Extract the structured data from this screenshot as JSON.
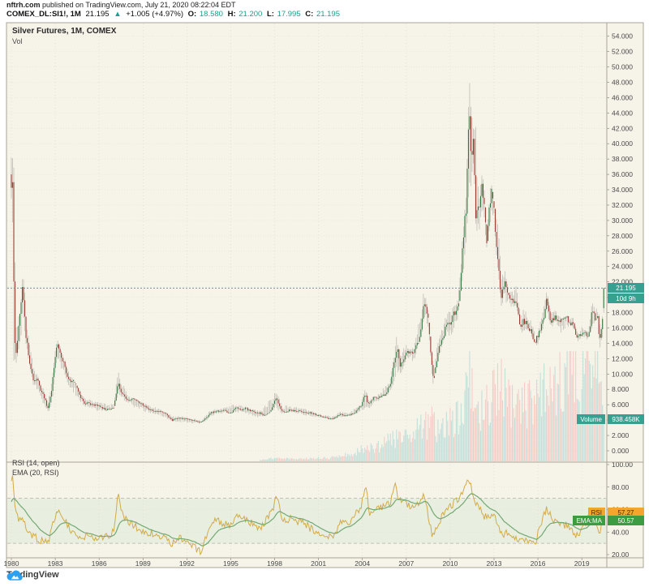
{
  "header": {
    "site": "nftrh.com",
    "published": " published on TradingView.com, July 21, 2020 08:22:04 EDT",
    "symbol": "COMEX_DL:SI1!, 1M",
    "last": "21.195",
    "arrow": "▲",
    "change": "+1.005 (+4.97%)",
    "o_label": "O:",
    "o_value": "18.580",
    "h_label": "H:",
    "h_value": "21.200",
    "l_label": "L:",
    "l_value": "17.995",
    "c_label": "C:",
    "c_value": "21.195"
  },
  "legend": {
    "title": "Silver Futures, 1M, COMEX",
    "vol": "Vol"
  },
  "rsi_legend": {
    "line1": "RSI (14, open)",
    "line2": "EMA (20, RSI)"
  },
  "badges": {
    "price": "21.195",
    "countdown": "10d 9h",
    "volume_label": "Volume",
    "volume_value": "938.458K",
    "rsi_label": "RSI",
    "rsi_value": "57.27",
    "ema_label": "EMA:MA",
    "ema_value": "50.57"
  },
  "footer": {
    "logo_text": "TradingView"
  },
  "colors": {
    "chart_bg": "#f6f3e9",
    "up": "#33763f",
    "down": "#9c3b34",
    "wick": "#b9b6ad",
    "vol_up": "#c3dfda",
    "vol_down": "#f5cdc7",
    "grid": "#e8e4d5",
    "vgrid": "#ddd8c8",
    "border": "#a9a498",
    "price_line": "#2fa095",
    "badge_teal": "#38a091",
    "badge_orange": "#f3a62c",
    "badge_orange_text": "#3f2c00",
    "badge_green": "#3d9b41",
    "rsi_line": "#d2ab48",
    "ema_line": "#74a873",
    "rsi_band": "#e8efe0",
    "rsi_dash": "#b2afa4",
    "axis_text": "#4a4a4a",
    "tv_blue": "#2da1f0"
  },
  "chart_data": {
    "type": "candlestick",
    "title": "Silver Futures, 1M, COMEX",
    "interval": "1M",
    "exchange": "COMEX",
    "x_ticks": [
      "1980",
      "1983",
      "1986",
      "1989",
      "1992",
      "1995",
      "1998",
      "2001",
      "2004",
      "2007",
      "2010",
      "2013",
      "2016",
      "2019"
    ],
    "price_axis_ticks": [
      "54.000",
      "52.000",
      "50.000",
      "48.000",
      "46.000",
      "44.000",
      "42.000",
      "40.000",
      "38.000",
      "36.000",
      "34.000",
      "32.000",
      "30.000",
      "28.000",
      "26.000",
      "24.000",
      "22.000",
      "20.000",
      "18.000",
      "16.000",
      "14.000",
      "12.000",
      "10.000",
      "8.000",
      "6.000",
      "4.000",
      "2.000",
      "0.000"
    ],
    "rsi_axis_ticks": [
      "100.00",
      "80.00",
      "60.00",
      "40.00",
      "20.00"
    ],
    "x_range": [
      1980.0,
      2020.58
    ],
    "price_range_visible": [
      -1.5,
      55.8
    ],
    "last_price": 21.195,
    "last_bar": {
      "open": 18.58,
      "high": 21.2,
      "low": 17.995,
      "close": 21.195
    },
    "last_volume_K": 938.458,
    "rsi_levels": [
      70,
      30
    ],
    "rsi_last": 57.27,
    "ema_last": 50.57,
    "close_keyframes": [
      [
        1980.0,
        34
      ],
      [
        1980.08,
        36
      ],
      [
        1980.17,
        21
      ],
      [
        1980.25,
        14
      ],
      [
        1980.33,
        13
      ],
      [
        1980.5,
        16
      ],
      [
        1980.75,
        21
      ],
      [
        1980.9,
        18
      ],
      [
        1981.0,
        15
      ],
      [
        1981.25,
        11.5
      ],
      [
        1981.5,
        9
      ],
      [
        1981.75,
        9.5
      ],
      [
        1982.0,
        8
      ],
      [
        1982.25,
        7
      ],
      [
        1982.5,
        5.5
      ],
      [
        1982.75,
        8
      ],
      [
        1983.0,
        12.5
      ],
      [
        1983.2,
        14
      ],
      [
        1983.4,
        12
      ],
      [
        1983.6,
        11.5
      ],
      [
        1983.8,
        9.5
      ],
      [
        1984.0,
        9
      ],
      [
        1984.3,
        9.5
      ],
      [
        1984.6,
        7.5
      ],
      [
        1985.0,
        6.2
      ],
      [
        1985.5,
        6.1
      ],
      [
        1986.0,
        5.8
      ],
      [
        1986.5,
        5.3
      ],
      [
        1987.0,
        5.6
      ],
      [
        1987.3,
        9
      ],
      [
        1987.5,
        7.6
      ],
      [
        1987.8,
        6.8
      ],
      [
        1988.0,
        6.5
      ],
      [
        1988.5,
        6.8
      ],
      [
        1989.0,
        5.9
      ],
      [
        1989.5,
        5.3
      ],
      [
        1990.0,
        5.2
      ],
      [
        1990.5,
        4.9
      ],
      [
        1991.0,
        4.0
      ],
      [
        1991.5,
        4.3
      ],
      [
        1992.0,
        4.1
      ],
      [
        1992.5,
        3.9
      ],
      [
        1993.0,
        3.7
      ],
      [
        1993.6,
        4.9
      ],
      [
        1994.0,
        5.1
      ],
      [
        1994.5,
        5.3
      ],
      [
        1995.0,
        4.7
      ],
      [
        1995.3,
        5.6
      ],
      [
        1995.7,
        5.3
      ],
      [
        1996.0,
        5.5
      ],
      [
        1996.5,
        5.1
      ],
      [
        1997.0,
        4.9
      ],
      [
        1997.5,
        4.4
      ],
      [
        1997.9,
        5.9
      ],
      [
        1998.1,
        6.9
      ],
      [
        1998.4,
        5.4
      ],
      [
        1998.8,
        5.0
      ],
      [
        1999.0,
        5.3
      ],
      [
        1999.5,
        5.2
      ],
      [
        2000.0,
        5.1
      ],
      [
        2000.5,
        4.9
      ],
      [
        2001.0,
        4.6
      ],
      [
        2001.5,
        4.3
      ],
      [
        2001.9,
        4.1
      ],
      [
        2002.5,
        4.7
      ],
      [
        2003.0,
        4.6
      ],
      [
        2003.5,
        5.0
      ],
      [
        2003.9,
        5.8
      ],
      [
        2004.2,
        7.5
      ],
      [
        2004.4,
        6.0
      ],
      [
        2004.8,
        7.0
      ],
      [
        2005.0,
        6.8
      ],
      [
        2005.5,
        7.2
      ],
      [
        2005.9,
        8.5
      ],
      [
        2006.2,
        12
      ],
      [
        2006.4,
        13.5
      ],
      [
        2006.6,
        11
      ],
      [
        2007.0,
        13
      ],
      [
        2007.5,
        12.8
      ],
      [
        2007.9,
        14.5
      ],
      [
        2008.2,
        19.5
      ],
      [
        2008.5,
        17
      ],
      [
        2008.8,
        10
      ],
      [
        2008.9,
        9.5
      ],
      [
        2009.2,
        13
      ],
      [
        2009.7,
        16
      ],
      [
        2010.0,
        16.8
      ],
      [
        2010.3,
        18
      ],
      [
        2010.6,
        19.5
      ],
      [
        2010.9,
        28
      ],
      [
        2011.1,
        32
      ],
      [
        2011.3,
        45
      ],
      [
        2011.4,
        38
      ],
      [
        2011.6,
        40
      ],
      [
        2011.75,
        30
      ],
      [
        2012.0,
        32
      ],
      [
        2012.2,
        35
      ],
      [
        2012.5,
        27.5
      ],
      [
        2012.8,
        34
      ],
      [
        2013.0,
        31
      ],
      [
        2013.3,
        24
      ],
      [
        2013.5,
        19.5
      ],
      [
        2013.7,
        22
      ],
      [
        2014.0,
        20
      ],
      [
        2014.5,
        19.5
      ],
      [
        2014.8,
        16
      ],
      [
        2015.0,
        17
      ],
      [
        2015.4,
        16
      ],
      [
        2015.8,
        14.3
      ],
      [
        2016.0,
        14.9
      ],
      [
        2016.4,
        17.5
      ],
      [
        2016.6,
        19.5
      ],
      [
        2016.9,
        16.5
      ],
      [
        2017.0,
        17.5
      ],
      [
        2017.3,
        17.2
      ],
      [
        2017.6,
        16.8
      ],
      [
        2018.0,
        17.2
      ],
      [
        2018.4,
        16.4
      ],
      [
        2018.7,
        14.5
      ],
      [
        2019.0,
        15.5
      ],
      [
        2019.5,
        15.2
      ],
      [
        2019.7,
        18.5
      ],
      [
        2019.9,
        17
      ],
      [
        2020.1,
        17.8
      ],
      [
        2020.2,
        14
      ],
      [
        2020.3,
        15.5
      ],
      [
        2020.45,
        18
      ],
      [
        2020.55,
        21.195
      ]
    ],
    "hilo_keyframes": [
      [
        1980.0,
        41.8,
        30
      ],
      [
        1980.17,
        37,
        11
      ],
      [
        1980.33,
        17,
        10.8
      ],
      [
        1980.6,
        18,
        14
      ],
      [
        1980.8,
        25,
        16
      ],
      [
        1981.0,
        17.5,
        13.5
      ],
      [
        1981.5,
        11,
        8.5
      ],
      [
        1982.0,
        9,
        6.8
      ],
      [
        1982.5,
        6.5,
        4.9
      ],
      [
        1982.8,
        10.5,
        6
      ],
      [
        1983.1,
        14.7,
        11.5
      ],
      [
        1983.5,
        13,
        10.5
      ],
      [
        1984.0,
        10,
        8
      ],
      [
        1984.6,
        8.2,
        6.6
      ],
      [
        1985.0,
        7,
        5.8
      ],
      [
        1986.0,
        6.3,
        5.1
      ],
      [
        1987.0,
        6.2,
        5.4
      ],
      [
        1987.3,
        10.9,
        7
      ],
      [
        1987.7,
        8.5,
        6.5
      ],
      [
        1988.0,
        7.2,
        6.1
      ],
      [
        1989.0,
        6.3,
        5.0
      ],
      [
        1990.0,
        5.6,
        4.7
      ],
      [
        1991.0,
        4.6,
        3.8
      ],
      [
        1992.0,
        4.4,
        3.6
      ],
      [
        1993.0,
        4.0,
        3.5
      ],
      [
        1993.6,
        5.4,
        4.3
      ],
      [
        1994.0,
        5.5,
        4.8
      ],
      [
        1995.3,
        6.1,
        5.0
      ],
      [
        1996.0,
        5.8,
        4.8
      ],
      [
        1997.0,
        5.3,
        4.2
      ],
      [
        1998.1,
        7.8,
        5.5
      ],
      [
        1998.5,
        6.2,
        4.8
      ],
      [
        1999.0,
        5.8,
        5.0
      ],
      [
        2000.0,
        5.6,
        4.6
      ],
      [
        2001.0,
        4.9,
        4.3
      ],
      [
        2001.9,
        4.5,
        4.0
      ],
      [
        2002.5,
        5.1,
        4.4
      ],
      [
        2003.0,
        5.0,
        4.35
      ],
      [
        2003.9,
        6.0,
        5.0
      ],
      [
        2004.2,
        8.5,
        5.6
      ],
      [
        2004.5,
        6.8,
        5.5
      ],
      [
        2005.0,
        7.3,
        6.4
      ],
      [
        2005.9,
        9.2,
        7.5
      ],
      [
        2006.3,
        15.2,
        9.5
      ],
      [
        2006.6,
        12.5,
        9.9
      ],
      [
        2007.0,
        14.0,
        11.7
      ],
      [
        2007.5,
        13.5,
        11.5
      ],
      [
        2008.2,
        21.4,
        16
      ],
      [
        2008.5,
        18.5,
        16
      ],
      [
        2008.8,
        12,
        8.4
      ],
      [
        2009.2,
        14.5,
        11.8
      ],
      [
        2009.7,
        17.5,
        15
      ],
      [
        2010.0,
        18.9,
        14.6
      ],
      [
        2010.5,
        19.8,
        17
      ],
      [
        2010.9,
        29,
        23
      ],
      [
        2011.1,
        34,
        26.5
      ],
      [
        2011.3,
        49.8,
        33
      ],
      [
        2011.45,
        44,
        32
      ],
      [
        2011.6,
        42.3,
        37
      ],
      [
        2011.8,
        44,
        26
      ],
      [
        2012.0,
        34,
        28.5
      ],
      [
        2012.2,
        37.5,
        31
      ],
      [
        2012.5,
        29.5,
        26.1
      ],
      [
        2012.8,
        35.4,
        30.5
      ],
      [
        2013.0,
        32.5,
        29.5
      ],
      [
        2013.3,
        29,
        22
      ],
      [
        2013.5,
        23,
        18.2
      ],
      [
        2013.7,
        25.1,
        19.5
      ],
      [
        2014.0,
        20.6,
        18.8
      ],
      [
        2014.5,
        21.6,
        18.7
      ],
      [
        2014.9,
        17.3,
        15.1
      ],
      [
        2015.0,
        18.5,
        15.3
      ],
      [
        2015.4,
        17.8,
        15.5
      ],
      [
        2015.9,
        14.8,
        13.6
      ],
      [
        2016.0,
        15.9,
        13.8
      ],
      [
        2016.4,
        18.7,
        16
      ],
      [
        2016.6,
        21.2,
        18.4
      ],
      [
        2016.9,
        18.0,
        15.7
      ],
      [
        2017.2,
        18.6,
        16.8
      ],
      [
        2017.6,
        17.3,
        15.2
      ],
      [
        2018.0,
        17.7,
        16.1
      ],
      [
        2018.4,
        17.4,
        16.1
      ],
      [
        2018.8,
        15.0,
        13.9
      ],
      [
        2019.0,
        16.2,
        14.9
      ],
      [
        2019.4,
        15.6,
        14.3
      ],
      [
        2019.7,
        19.75,
        16
      ],
      [
        2019.9,
        18.3,
        16.9
      ],
      [
        2020.1,
        18.9,
        17.3
      ],
      [
        2020.2,
        17.5,
        11.6
      ],
      [
        2020.35,
        16,
        14
      ],
      [
        2020.45,
        19,
        14.8
      ],
      [
        2020.55,
        21.2,
        17.995
      ]
    ],
    "volume_keyframes": [
      [
        1980,
        0
      ],
      [
        1996.9,
        0
      ],
      [
        1997,
        25
      ],
      [
        1998,
        70
      ],
      [
        1999,
        60
      ],
      [
        2000,
        65
      ],
      [
        2001,
        70
      ],
      [
        2002,
        90
      ],
      [
        2003,
        140
      ],
      [
        2004,
        260
      ],
      [
        2005,
        300
      ],
      [
        2006,
        480
      ],
      [
        2007,
        520
      ],
      [
        2008,
        800
      ],
      [
        2008.8,
        900
      ],
      [
        2009,
        700
      ],
      [
        2010,
        850
      ],
      [
        2010.9,
        1100
      ],
      [
        2011.3,
        1900
      ],
      [
        2011.8,
        1400
      ],
      [
        2012,
        1100
      ],
      [
        2013,
        1500
      ],
      [
        2013.5,
        1700
      ],
      [
        2014,
        1300
      ],
      [
        2015,
        1200
      ],
      [
        2016,
        1500
      ],
      [
        2016.6,
        2000
      ],
      [
        2017,
        1700
      ],
      [
        2018,
        1900
      ],
      [
        2019,
        1800
      ],
      [
        2019.7,
        2200
      ],
      [
        2020.2,
        2900
      ],
      [
        2020.45,
        1600
      ],
      [
        2020.55,
        938.458
      ]
    ],
    "rsi_keyframes": [
      [
        1980.0,
        82
      ],
      [
        1980.08,
        88
      ],
      [
        1980.25,
        60
      ],
      [
        1980.5,
        50
      ],
      [
        1980.75,
        55
      ],
      [
        1981.0,
        45
      ],
      [
        1981.5,
        36
      ],
      [
        1982.0,
        33
      ],
      [
        1982.5,
        30
      ],
      [
        1983.0,
        55
      ],
      [
        1983.3,
        60
      ],
      [
        1984.0,
        42
      ],
      [
        1984.5,
        38
      ],
      [
        1985.0,
        35
      ],
      [
        1986.0,
        33
      ],
      [
        1987.0,
        40
      ],
      [
        1987.3,
        73
      ],
      [
        1987.6,
        55
      ],
      [
        1988.0,
        50
      ],
      [
        1989.0,
        40
      ],
      [
        1990.0,
        38
      ],
      [
        1991.0,
        30
      ],
      [
        1991.5,
        35
      ],
      [
        1992.0,
        32
      ],
      [
        1992.7,
        25
      ],
      [
        1993.0,
        22
      ],
      [
        1993.6,
        48
      ],
      [
        1994.0,
        50
      ],
      [
        1995.0,
        45
      ],
      [
        1995.3,
        55
      ],
      [
        1996.0,
        52
      ],
      [
        1997.0,
        42
      ],
      [
        1997.9,
        60
      ],
      [
        1998.1,
        75
      ],
      [
        1998.5,
        50
      ],
      [
        1999.0,
        52
      ],
      [
        2000.0,
        48
      ],
      [
        2001.0,
        38
      ],
      [
        2001.9,
        35
      ],
      [
        2002.5,
        48
      ],
      [
        2003.0,
        47
      ],
      [
        2003.9,
        62
      ],
      [
        2004.2,
        82
      ],
      [
        2004.5,
        58
      ],
      [
        2005.0,
        60
      ],
      [
        2005.9,
        65
      ],
      [
        2006.2,
        85
      ],
      [
        2006.5,
        68
      ],
      [
        2007.0,
        65
      ],
      [
        2007.5,
        60
      ],
      [
        2008.2,
        73
      ],
      [
        2008.8,
        35
      ],
      [
        2009.2,
        48
      ],
      [
        2009.7,
        60
      ],
      [
        2010.0,
        62
      ],
      [
        2010.9,
        75
      ],
      [
        2011.3,
        87
      ],
      [
        2011.7,
        65
      ],
      [
        2012.0,
        60
      ],
      [
        2012.5,
        52
      ],
      [
        2013.0,
        55
      ],
      [
        2013.5,
        38
      ],
      [
        2014.0,
        40
      ],
      [
        2014.8,
        33
      ],
      [
        2015.0,
        35
      ],
      [
        2015.8,
        30
      ],
      [
        2016.4,
        55
      ],
      [
        2016.6,
        62
      ],
      [
        2017.0,
        50
      ],
      [
        2017.5,
        47
      ],
      [
        2018.0,
        46
      ],
      [
        2018.7,
        36
      ],
      [
        2019.0,
        42
      ],
      [
        2019.7,
        58
      ],
      [
        2020.0,
        48
      ],
      [
        2020.2,
        38
      ],
      [
        2020.55,
        57.27
      ]
    ]
  }
}
